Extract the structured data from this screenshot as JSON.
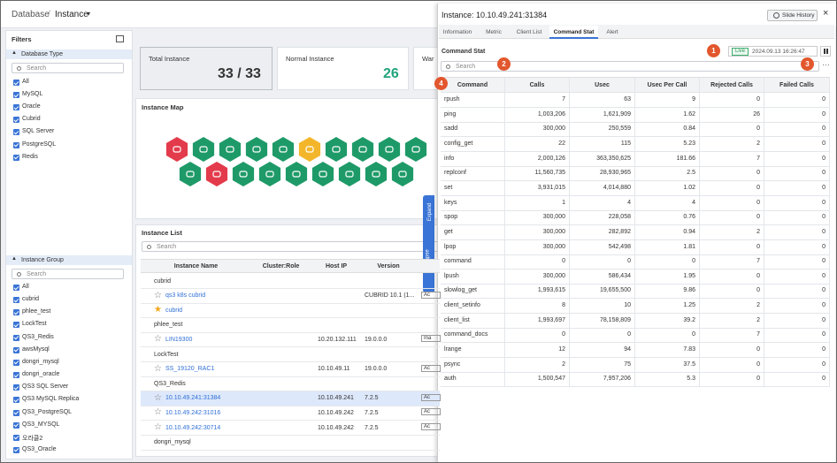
{
  "header": {
    "breadcrumb_root": "Database",
    "separator": "/",
    "current": "Instance"
  },
  "filters": {
    "title": "Filters",
    "database_type": {
      "title": "Database Type",
      "search_placeholder": "Search",
      "items": [
        "All",
        "MySQL",
        "Oracle",
        "Cubrid",
        "SQL Server",
        "PostgreSQL",
        "Redis"
      ]
    },
    "instance_group": {
      "title": "Instance Group",
      "search_placeholder": "Search",
      "items": [
        "All",
        "cubrid",
        "phlee_test",
        "LockTest",
        "QS3_Redis",
        "awsMysql",
        "dongri_mysql",
        "dongri_oracle",
        "QS3 SQL Server",
        "QS3 MySQL Replica",
        "QS3_PostgreSQL",
        "QS3_MYSQL",
        "오라클2",
        "QS3_Oracle"
      ]
    }
  },
  "summary_cards": [
    {
      "label": "Total Instance",
      "value": "33 / 33"
    },
    {
      "label": "Normal Instance",
      "value": "26"
    },
    {
      "label": "War"
    }
  ],
  "instance_map": {
    "title": "Instance Map"
  },
  "side_tabs": [
    "Expand",
    "Collapse"
  ],
  "instance_list": {
    "title": "Instance List",
    "search_placeholder": "Search",
    "columns": [
      "Instance Name",
      "Cluster:Role",
      "Host IP",
      "Version"
    ],
    "rows": [
      {
        "group": "cubrid"
      },
      {
        "name": "qs3 k8s cubrid",
        "host_ip": "",
        "version": "CUBRID 10.1 (1...",
        "status": "Ac"
      },
      {
        "name": "cubrid"
      },
      {
        "group": "phlee_test"
      },
      {
        "name": "LIN19300",
        "host_ip": "10.20.132.111",
        "version": "19.0.0.0",
        "status": "Ina"
      },
      {
        "group": "LockTest"
      },
      {
        "name": "SS_19120_RAC1",
        "host_ip": "10.10.49.11",
        "version": "19.0.0.0",
        "status": "Ac"
      },
      {
        "group": "QS3_Redis"
      },
      {
        "name": "10.10.49.241:31384",
        "host_ip": "10.10.49.241",
        "version": "7.2.5",
        "status": "Ac"
      },
      {
        "name": "10.10.49.242:31016",
        "host_ip": "10.10.49.242",
        "version": "7.2.5",
        "status": "Ac"
      },
      {
        "name": "10.10.49.242:30714",
        "host_ip": "10.10.49.242",
        "version": "7.2.5",
        "status": "Ac"
      },
      {
        "group": "dongri_mysql"
      }
    ]
  },
  "drawer": {
    "title": "Instance: 10.10.49.241:31384",
    "slide_history": "Slide History",
    "tabs": [
      "Information",
      "Metric",
      "Client List",
      "Command Stat",
      "Alert"
    ],
    "section_title": "Command Stat",
    "live": "Live",
    "timestamp": "2024.09.13 16:26:47",
    "search_placeholder": "Search",
    "markers": [
      1,
      2,
      3,
      4
    ],
    "table": {
      "columns": [
        "Command",
        "Calls",
        "Usec",
        "Usec Per Call",
        "Rejected Calls",
        "Failed Calls"
      ],
      "rows": [
        [
          "rpush",
          "7",
          "63",
          "9",
          "0",
          "0"
        ],
        [
          "ping",
          "1,003,206",
          "1,621,909",
          "1.62",
          "26",
          "0"
        ],
        [
          "sadd",
          "300,000",
          "250,559",
          "0.84",
          "0",
          "0"
        ],
        [
          "config_get",
          "22",
          "115",
          "5.23",
          "2",
          "0"
        ],
        [
          "info",
          "2,000,126",
          "363,350,625",
          "181.66",
          "7",
          "0"
        ],
        [
          "replconf",
          "11,560,735",
          "28,930,965",
          "2.5",
          "0",
          "0"
        ],
        [
          "set",
          "3,931,015",
          "4,014,880",
          "1.02",
          "0",
          "0"
        ],
        [
          "keys",
          "1",
          "4",
          "4",
          "0",
          "0"
        ],
        [
          "spop",
          "300,000",
          "228,058",
          "0.76",
          "0",
          "0"
        ],
        [
          "get",
          "300,000",
          "282,892",
          "0.94",
          "2",
          "0"
        ],
        [
          "lpop",
          "300,000",
          "542,498",
          "1.81",
          "0",
          "0"
        ],
        [
          "command",
          "0",
          "0",
          "0",
          "7",
          "0"
        ],
        [
          "lpush",
          "300,000",
          "586,434",
          "1.95",
          "0",
          "0"
        ],
        [
          "slowlog_get",
          "1,993,615",
          "19,655,500",
          "9.86",
          "0",
          "0"
        ],
        [
          "client_setinfo",
          "8",
          "10",
          "1.25",
          "2",
          "0"
        ],
        [
          "client_list",
          "1,993,697",
          "78,158,809",
          "39.2",
          "2",
          "0"
        ],
        [
          "command_docs",
          "0",
          "0",
          "0",
          "7",
          "0"
        ],
        [
          "lrange",
          "12",
          "94",
          "7.83",
          "0",
          "0"
        ],
        [
          "psync",
          "2",
          "75",
          "37.5",
          "0",
          "0"
        ],
        [
          "auth",
          "1,500,547",
          "7,957,206",
          "5.3",
          "0",
          "0"
        ]
      ]
    }
  }
}
